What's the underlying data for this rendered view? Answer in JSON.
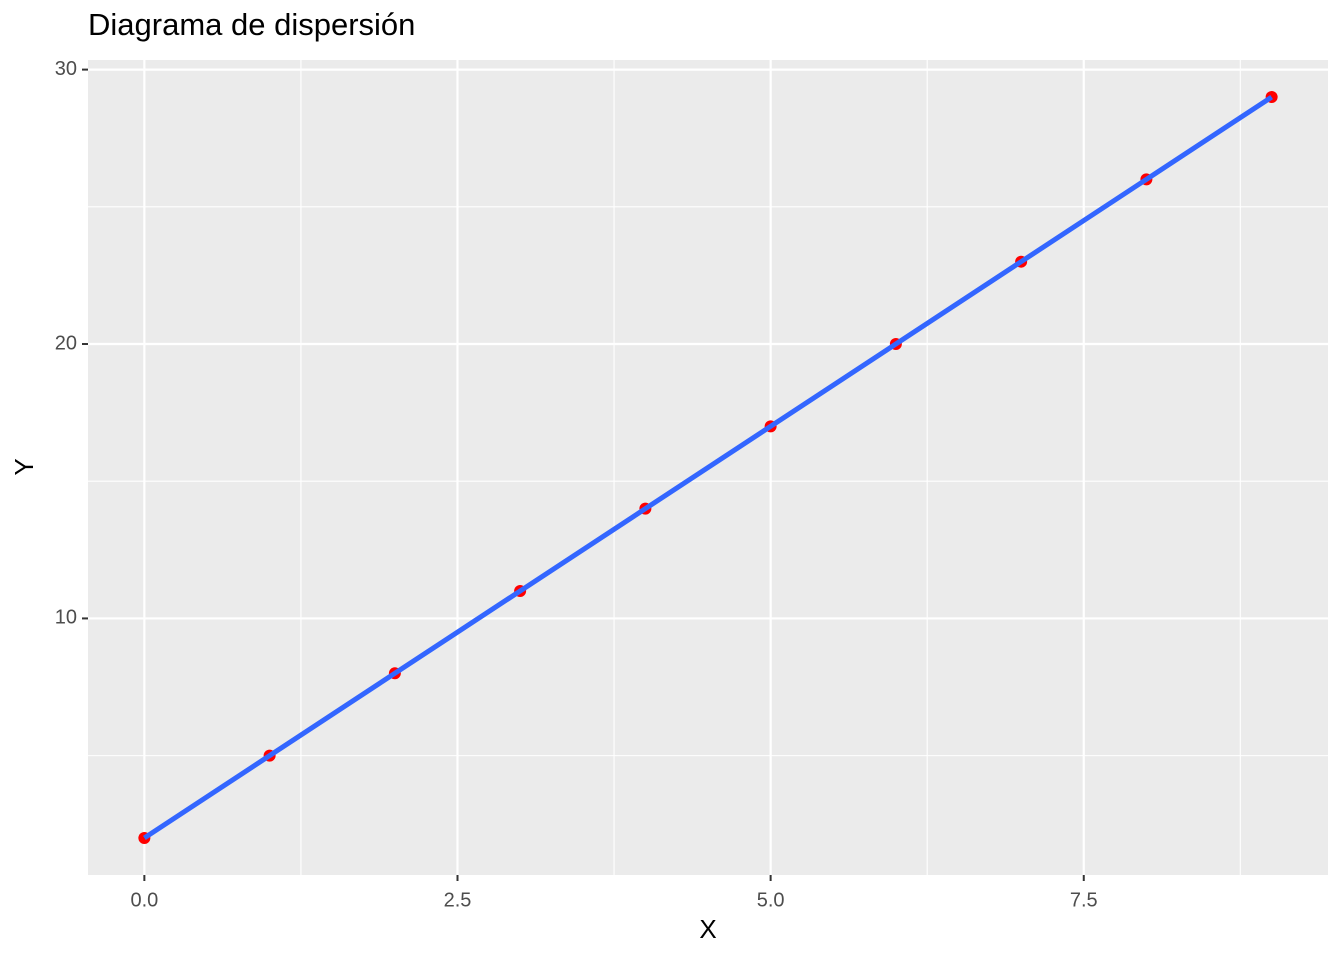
{
  "chart_data": {
    "type": "scatter",
    "title": "Diagrama de dispersión",
    "x_label": "X",
    "y_label": "Y",
    "x": [
      0,
      1,
      2,
      3,
      4,
      5,
      6,
      7,
      8,
      9
    ],
    "series": [
      {
        "color": "#ff0000",
        "values": [
          2,
          5,
          8,
          11,
          14,
          17,
          20,
          23,
          26,
          29
        ]
      }
    ],
    "trend_line": {
      "color": "#3366ff",
      "x": [
        0,
        9
      ],
      "values": [
        2,
        29
      ]
    },
    "xlim": [
      -0.45,
      9.45
    ],
    "ylim": [
      0.65,
      30.35
    ],
    "xticks": [
      {
        "value": 0,
        "label": "0.0"
      },
      {
        "value": 2.5,
        "label": "2.5"
      },
      {
        "value": 5,
        "label": "5.0"
      },
      {
        "value": 7.5,
        "label": "7.5"
      }
    ],
    "yticks": [
      10,
      20,
      30
    ],
    "xminor": [
      1.25,
      3.75,
      6.25,
      8.75
    ],
    "yminor": [
      5,
      15,
      25
    ],
    "grid": true
  }
}
